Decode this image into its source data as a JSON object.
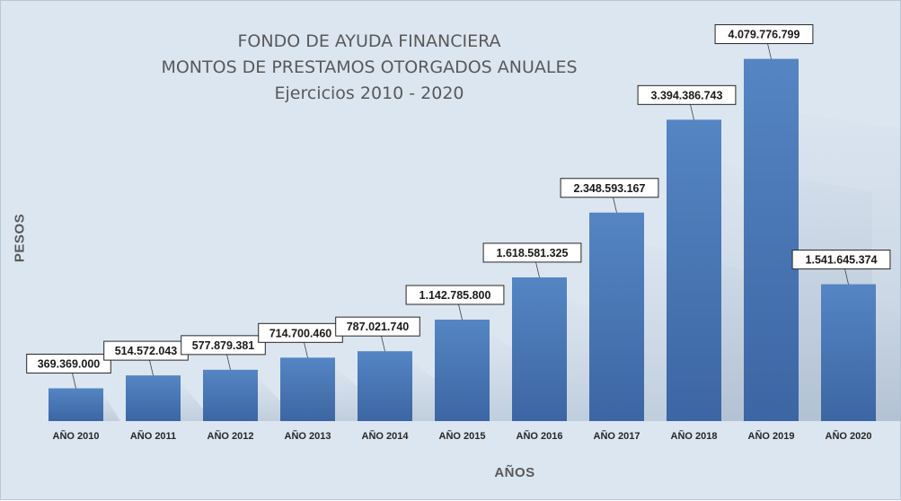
{
  "chart_data": {
    "type": "bar",
    "title": [
      "FONDO DE AYUDA FINANCIERA",
      "MONTOS DE PRESTAMOS OTORGADOS ANUALES",
      "Ejercicios 2010 - 2020"
    ],
    "xlabel": "AÑOS",
    "ylabel": "PESOS",
    "categories": [
      "AÑO 2010",
      "AÑO 2011",
      "AÑO 2012",
      "AÑO 2013",
      "AÑO 2014",
      "AÑO 2015",
      "AÑO 2016",
      "AÑO 2017",
      "AÑO 2018",
      "AÑO 2019",
      "AÑO 2020"
    ],
    "values": [
      369369000,
      514572043,
      577879381,
      714700460,
      787021740,
      1142785800,
      1618581325,
      2348593167,
      3394386743,
      4079776799,
      1541645374
    ],
    "data_labels": [
      "369.369.000",
      "514.572.043",
      "577.879.381",
      "714.700.460",
      "787.021.740",
      "1.142.785.800",
      "1.618.581.325",
      "2.348.593.167",
      "3.394.386.743",
      "4.079.776.799",
      "1.541.645.374"
    ],
    "ylim": [
      0,
      4500000000
    ],
    "grid": false,
    "legend": "none",
    "colors": {
      "bar_top": "#5585c3",
      "bar_bottom": "#3c66a3",
      "background": "#dce6f1",
      "text": "#595959"
    }
  }
}
